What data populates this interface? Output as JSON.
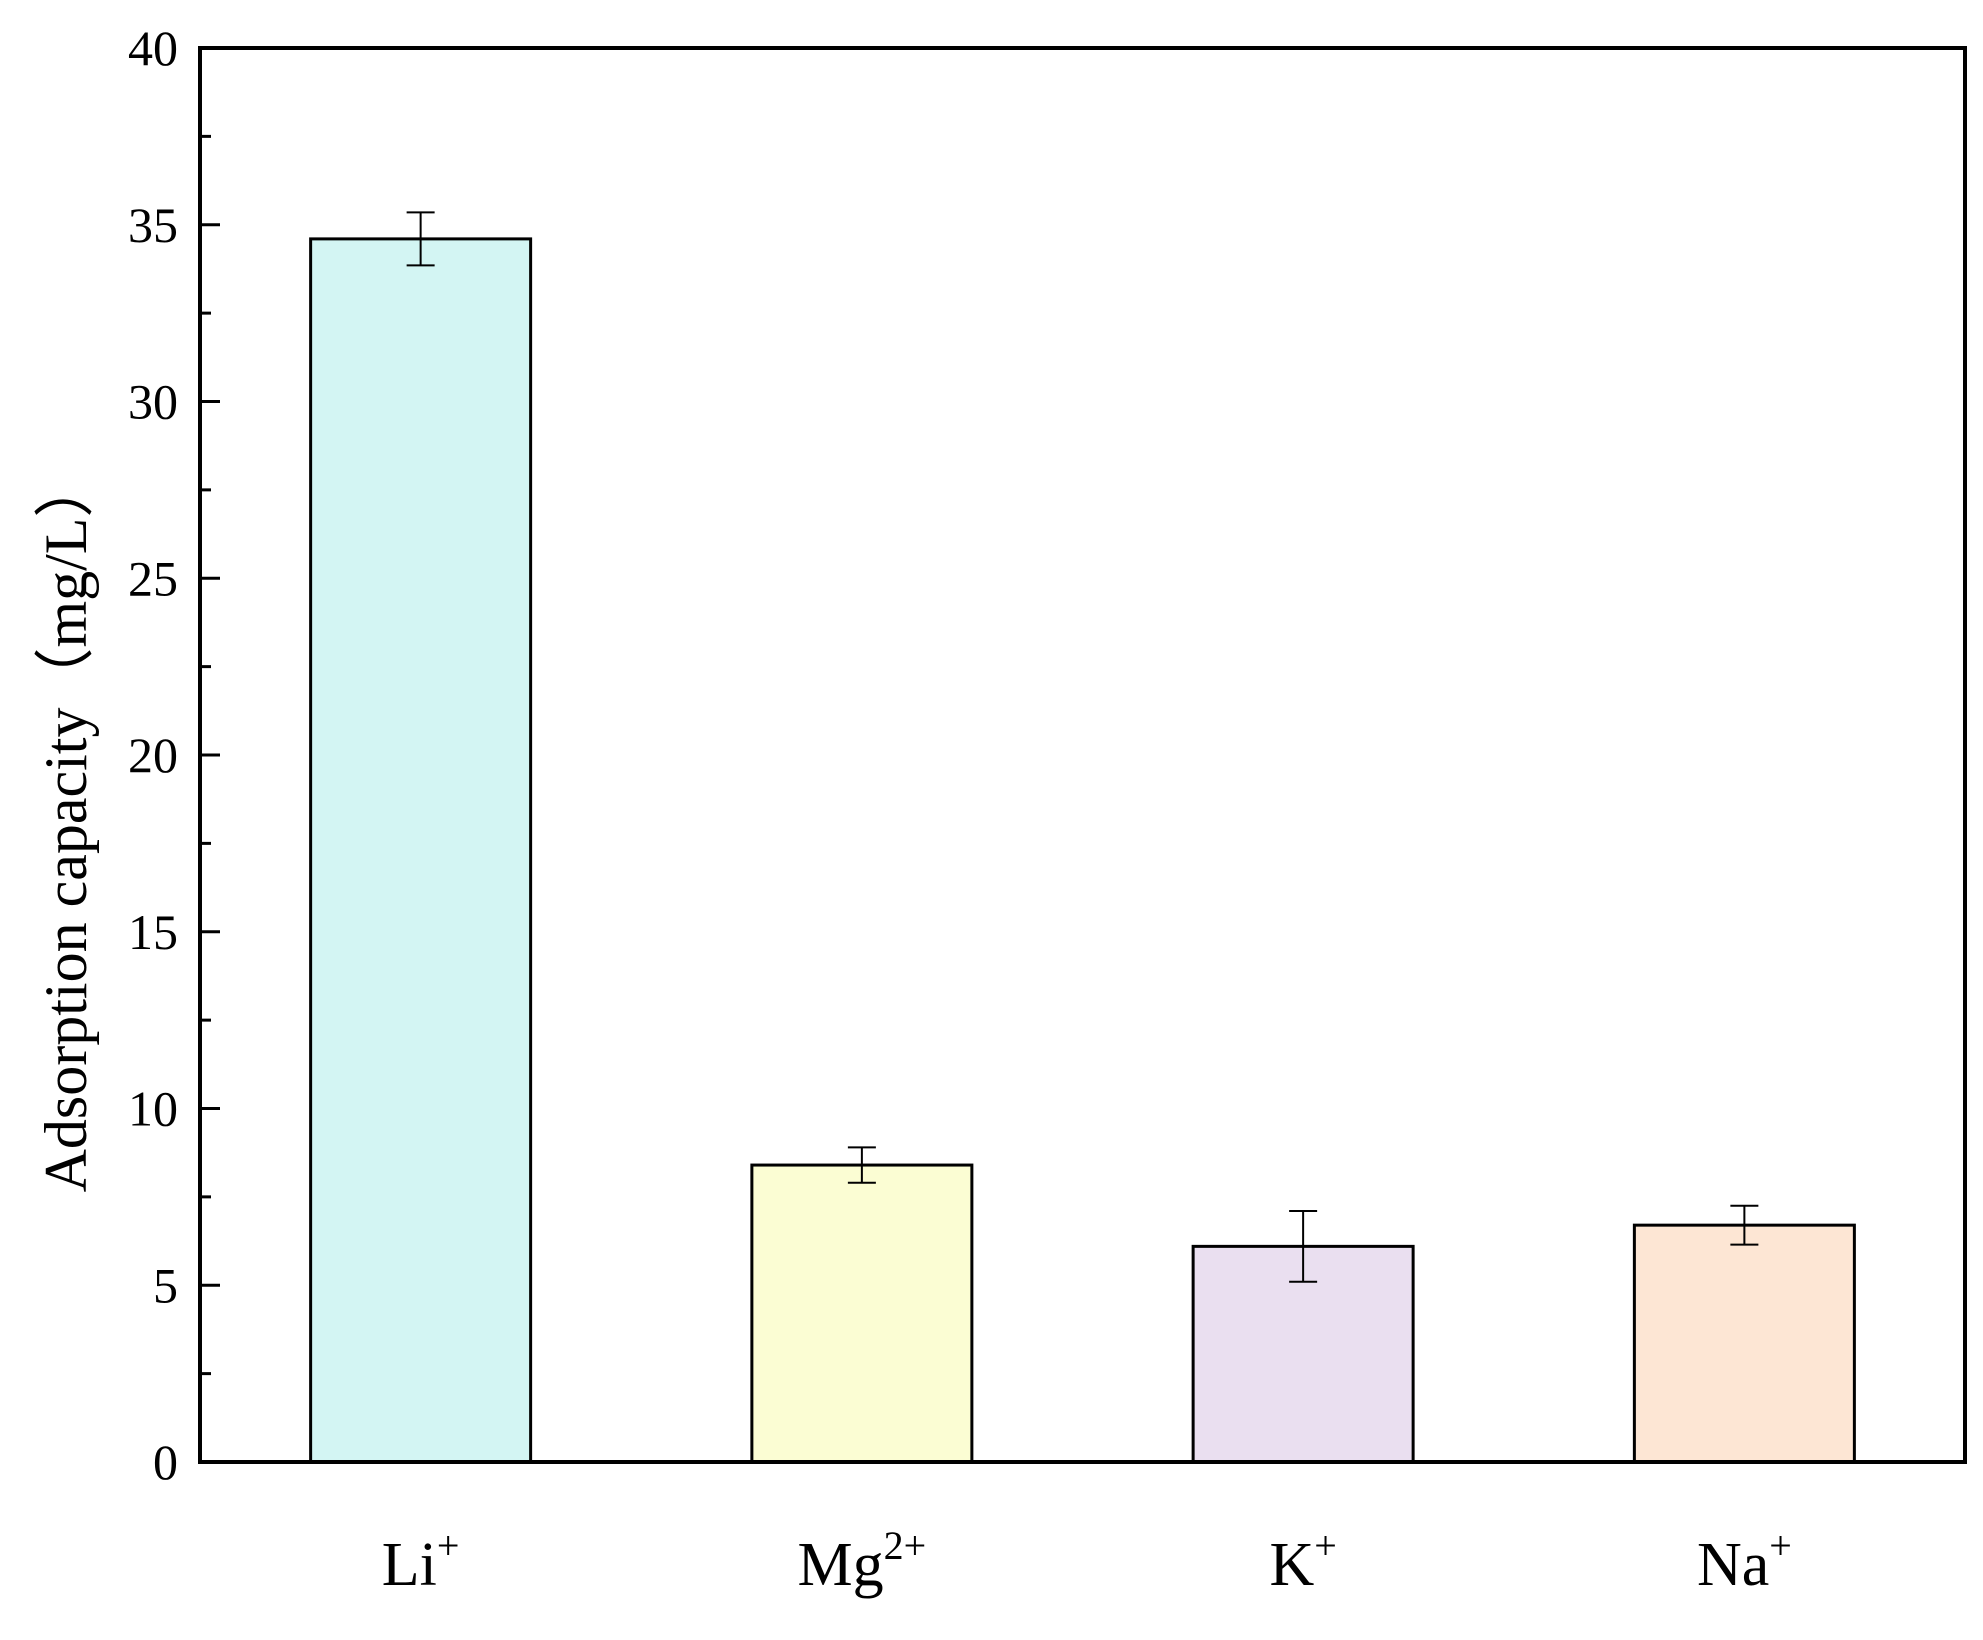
{
  "chart_data": {
    "type": "bar",
    "categories": [
      {
        "base": "Li",
        "sup": "+"
      },
      {
        "base": "Mg",
        "sup": "2+"
      },
      {
        "base": "K",
        "sup": "+"
      },
      {
        "base": "Na",
        "sup": "+"
      }
    ],
    "values": [
      34.6,
      8.4,
      6.1,
      6.7
    ],
    "errors": [
      0.75,
      0.5,
      1.0,
      0.55
    ],
    "colors": [
      "#d3f5f3",
      "#fbfdd3",
      "#eadff0",
      "#fde6d4"
    ],
    "xlabel": "",
    "ylabel": "Adsorption capacity（mg/L）",
    "ylim": [
      0,
      40
    ],
    "yticks": [
      "0",
      "5",
      "10",
      "15",
      "20",
      "25",
      "30",
      "35",
      "40"
    ],
    "grid": false,
    "legend": "none"
  }
}
